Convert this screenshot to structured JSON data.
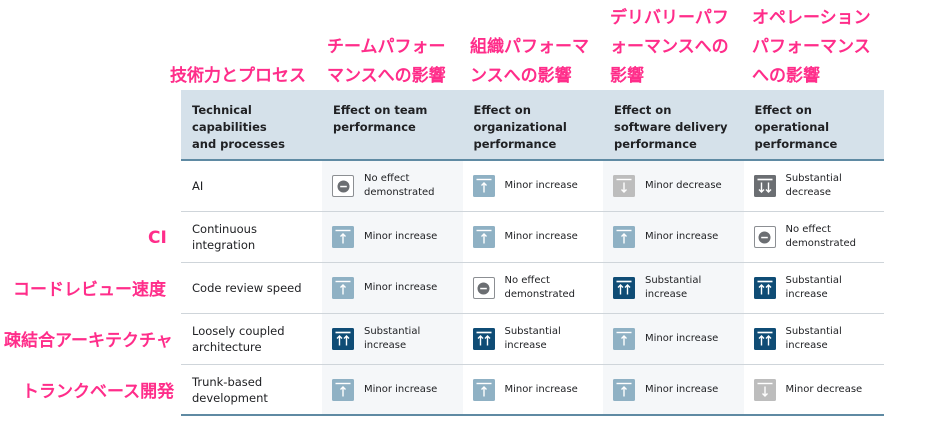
{
  "annotations": {
    "col0": [
      "技術力とプロセス"
    ],
    "col1": [
      "チームパフォー",
      "マンスへの影響"
    ],
    "col2": [
      "組織パフォーマ",
      "ンスへの影響"
    ],
    "col3": [
      "デリバリーパフ",
      "ォーマンスへの",
      "影響"
    ],
    "col4": [
      "オペレーション",
      "パフォーマンス",
      "への影響"
    ],
    "ci": "CI",
    "code_review": "コードレビュー速度",
    "loosely": "疎結合アーキテクチャ",
    "trunk": "トランクベース開発"
  },
  "header": [
    [
      "Technical",
      "capabilities",
      "and processes"
    ],
    [
      "Effect on team",
      "performance"
    ],
    [
      "Effect on",
      "organizational",
      "performance"
    ],
    [
      "Effect on",
      "software delivery",
      "performance"
    ],
    [
      "Effect on",
      "operational",
      "performance"
    ]
  ],
  "rows": [
    {
      "label": [
        "AI"
      ],
      "cells": [
        {
          "icon": "no-effect",
          "text": [
            "No effect",
            "demonstrated"
          ]
        },
        {
          "icon": "minor-increase",
          "text": [
            "Minor increase"
          ]
        },
        {
          "icon": "minor-decrease",
          "text": [
            "Minor decrease"
          ]
        },
        {
          "icon": "substantial-decrease",
          "text": [
            "Substantial",
            "decrease"
          ]
        }
      ]
    },
    {
      "label": [
        "Continuous",
        "integration"
      ],
      "cells": [
        {
          "icon": "minor-increase",
          "text": [
            "Minor increase"
          ]
        },
        {
          "icon": "minor-increase",
          "text": [
            "Minor increase"
          ]
        },
        {
          "icon": "minor-increase",
          "text": [
            "Minor increase"
          ]
        },
        {
          "icon": "no-effect",
          "text": [
            "No effect",
            "demonstrated"
          ]
        }
      ]
    },
    {
      "label": [
        "Code review speed"
      ],
      "cells": [
        {
          "icon": "minor-increase",
          "text": [
            "Minor increase"
          ]
        },
        {
          "icon": "no-effect",
          "text": [
            "No effect",
            "demonstrated"
          ]
        },
        {
          "icon": "substantial-increase",
          "text": [
            "Substantial",
            "increase"
          ]
        },
        {
          "icon": "substantial-increase",
          "text": [
            "Substantial",
            "increase"
          ]
        }
      ]
    },
    {
      "label": [
        "Loosely coupled",
        "architecture"
      ],
      "cells": [
        {
          "icon": "substantial-increase",
          "text": [
            "Substantial",
            "increase"
          ]
        },
        {
          "icon": "substantial-increase",
          "text": [
            "Substantial",
            "increase"
          ]
        },
        {
          "icon": "minor-increase",
          "text": [
            "Minor increase"
          ]
        },
        {
          "icon": "substantial-increase",
          "text": [
            "Substantial",
            "increase"
          ]
        }
      ]
    },
    {
      "label": [
        "Trunk-based",
        "development"
      ],
      "cells": [
        {
          "icon": "minor-increase",
          "text": [
            "Minor increase"
          ]
        },
        {
          "icon": "minor-increase",
          "text": [
            "Minor increase"
          ]
        },
        {
          "icon": "minor-increase",
          "text": [
            "Minor increase"
          ]
        },
        {
          "icon": "minor-decrease",
          "text": [
            "Minor decrease"
          ]
        }
      ]
    }
  ],
  "colors": {
    "annotation": "#ff2d8a",
    "header_bg": "#d5e1ea",
    "minor_increase": "#8fb1c4",
    "substantial_increase": "#0f4c75",
    "minor_decrease": "#bdbdbd",
    "substantial_decrease": "#6b6e72"
  }
}
